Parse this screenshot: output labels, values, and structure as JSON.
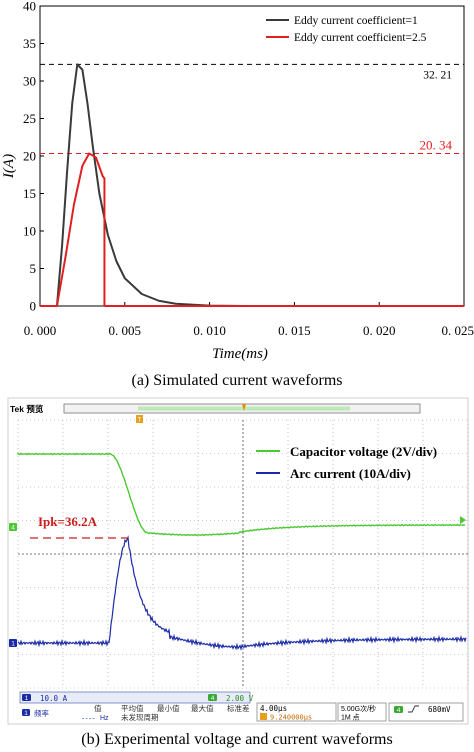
{
  "chart_data": [
    {
      "type": "line",
      "ylabel": "I(A)",
      "xlabel": "Time(ms)",
      "xlim": [
        0.0,
        0.025
      ],
      "ylim": [
        0,
        40
      ],
      "x_ticks": [
        "0. 000",
        "0. 005",
        "0. 010",
        "0. 015",
        "0. 020",
        "0. 025"
      ],
      "y_ticks": [
        "0",
        "5",
        "10",
        "15",
        "20",
        "25",
        "30",
        "35",
        "40"
      ],
      "legend_position": "top-right",
      "colors": {
        "series1": "#3a3a3a",
        "series2": "#e02020",
        "ref1": "#000000",
        "ref2": "#e02020"
      },
      "series": [
        {
          "name": "Eddy current coefficient=1",
          "points": [
            [
              0.0,
              0
            ],
            [
              0.001,
              0
            ],
            [
              0.0013,
              8
            ],
            [
              0.0016,
              18
            ],
            [
              0.0019,
              27
            ],
            [
              0.0022,
              32.21
            ],
            [
              0.0025,
              31.5
            ],
            [
              0.0028,
              27
            ],
            [
              0.0031,
              21.5
            ],
            [
              0.0035,
              15
            ],
            [
              0.004,
              9.5
            ],
            [
              0.0045,
              6
            ],
            [
              0.005,
              3.7
            ],
            [
              0.006,
              1.6
            ],
            [
              0.007,
              0.7
            ],
            [
              0.008,
              0.3
            ],
            [
              0.01,
              0.05
            ],
            [
              0.012,
              0
            ],
            [
              0.025,
              0
            ]
          ]
        },
        {
          "name": "Eddy current coefficient=2.5",
          "points": [
            [
              0.0,
              0
            ],
            [
              0.001,
              0
            ],
            [
              0.0015,
              6.5
            ],
            [
              0.002,
              13.5
            ],
            [
              0.0025,
              18.7
            ],
            [
              0.0029,
              20.34
            ],
            [
              0.0033,
              19.8
            ],
            [
              0.0037,
              17.3
            ],
            [
              0.0038,
              17
            ],
            [
              0.0038,
              0
            ],
            [
              0.025,
              0
            ]
          ]
        }
      ],
      "reference_lines": [
        {
          "y": 32.21,
          "label": "32. 21",
          "color": "#000000"
        },
        {
          "y": 20.34,
          "label": "20. 34",
          "color": "#e02020"
        }
      ],
      "caption": "(a) Simulated current waveforms"
    },
    {
      "type": "line",
      "header": "Tek 预览",
      "colors": {
        "capacitor": "#4cc832",
        "arc": "#1a2aa8",
        "annotation": "#c81e1e",
        "grid": "#9a9a9a"
      },
      "series": [
        {
          "name": "Capacitor voltage (2V/div)",
          "color": "#4cc832"
        },
        {
          "name": "Arc current (10A/div)",
          "color": "#1a2aa8"
        }
      ],
      "annotation": "Ipk=36.2A",
      "channel_markers": [
        "4",
        "1"
      ],
      "status": {
        "ch1_badge": "1",
        "ch1_scale": "10.0 A",
        "ch4_badge": "4",
        "ch4_scale": "2.00 V",
        "row2_label": "频率",
        "row2_hz": "Hz",
        "stat_headers": [
          "值",
          "平均值",
          "最小值",
          "最大值",
          "标准差"
        ],
        "stat_note": "未发现周期",
        "timebase": "4.00μs",
        "trigger_pos": "9.240000μs",
        "sample_rate": "5.00G次/秒",
        "record": "1M 点",
        "trig_badge": "4",
        "trig_level": "680mV"
      },
      "caption": "(b) Experimental voltage and current waveforms"
    }
  ]
}
